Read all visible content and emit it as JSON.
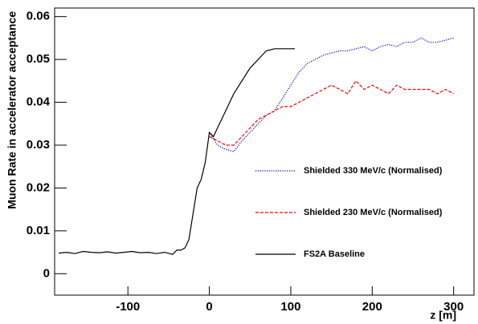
{
  "chart_data": {
    "type": "line",
    "xlabel": "z [m]",
    "ylabel": "Muon Rate in accelerator acceptance",
    "xlim": [
      -190,
      325
    ],
    "ylim": [
      -0.005,
      0.062
    ],
    "xticks": [
      -100,
      0,
      100,
      200,
      300
    ],
    "yticks": [
      0,
      0.01,
      0.02,
      0.03,
      0.04,
      0.05,
      0.06
    ],
    "legend": "right",
    "series": [
      {
        "name": "Shielded 330 MeV/c (Normalised)",
        "color": "#0000cc",
        "style": "dotted",
        "x": [
          0,
          10,
          20,
          30,
          40,
          50,
          60,
          70,
          80,
          90,
          100,
          110,
          120,
          130,
          140,
          150,
          160,
          170,
          180,
          190,
          200,
          210,
          220,
          230,
          240,
          250,
          260,
          270,
          280,
          290,
          300
        ],
        "values": [
          0.033,
          0.03,
          0.029,
          0.0285,
          0.031,
          0.033,
          0.035,
          0.037,
          0.038,
          0.041,
          0.044,
          0.047,
          0.049,
          0.05,
          0.051,
          0.0515,
          0.052,
          0.052,
          0.0525,
          0.053,
          0.052,
          0.053,
          0.0535,
          0.053,
          0.054,
          0.054,
          0.055,
          0.054,
          0.054,
          0.0545,
          0.055
        ]
      },
      {
        "name": "Shielded 230 MeV/c (Normalised)",
        "color": "#ff0000",
        "style": "dashed",
        "x": [
          0,
          10,
          20,
          30,
          40,
          50,
          60,
          70,
          80,
          90,
          100,
          110,
          120,
          130,
          140,
          150,
          160,
          170,
          180,
          190,
          200,
          210,
          220,
          230,
          240,
          250,
          260,
          270,
          280,
          290,
          300
        ],
        "values": [
          0.032,
          0.031,
          0.03,
          0.03,
          0.032,
          0.034,
          0.036,
          0.037,
          0.038,
          0.039,
          0.039,
          0.04,
          0.041,
          0.042,
          0.043,
          0.044,
          0.043,
          0.042,
          0.045,
          0.043,
          0.044,
          0.043,
          0.042,
          0.044,
          0.043,
          0.043,
          0.043,
          0.043,
          0.042,
          0.043,
          0.042
        ]
      },
      {
        "name": "FS2A Baseline",
        "color": "#000000",
        "style": "solid",
        "x": [
          -185,
          -175,
          -165,
          -155,
          -145,
          -135,
          -125,
          -115,
          -105,
          -95,
          -85,
          -75,
          -65,
          -55,
          -45,
          -40,
          -35,
          -30,
          -25,
          -20,
          -15,
          -10,
          -5,
          0,
          5,
          10,
          20,
          30,
          40,
          50,
          60,
          70,
          80,
          90,
          100,
          105
        ],
        "values": [
          0.0048,
          0.005,
          0.0047,
          0.0052,
          0.005,
          0.0049,
          0.0051,
          0.0048,
          0.005,
          0.0052,
          0.0049,
          0.005,
          0.0047,
          0.005,
          0.0045,
          0.0055,
          0.0055,
          0.006,
          0.008,
          0.014,
          0.02,
          0.022,
          0.026,
          0.033,
          0.032,
          0.034,
          0.038,
          0.042,
          0.045,
          0.048,
          0.05,
          0.052,
          0.0525,
          0.0525,
          0.0525,
          0.0525
        ]
      }
    ]
  }
}
